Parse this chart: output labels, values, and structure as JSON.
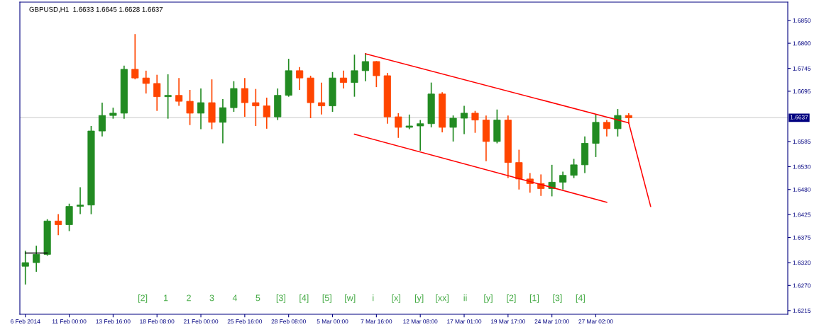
{
  "chart_data": {
    "type": "candlestick",
    "title": "GBPUSD,H1  1.6633 1.6645 1.6628 1.6637",
    "categories": [
      "6 Feb 2014",
      null,
      null,
      null,
      "11 Feb 00:00",
      null,
      null,
      null,
      "13 Feb 16:00",
      null,
      null,
      null,
      "18 Feb 08:00",
      null,
      null,
      null,
      "21 Feb 00:00",
      null,
      null,
      null,
      "25 Feb 16:00",
      null,
      null,
      null,
      "28 Feb 08:00",
      null,
      null,
      null,
      "5 Mar 00:00",
      null,
      null,
      null,
      "7 Mar 16:00",
      null,
      null,
      null,
      "12 Mar 08:00",
      null,
      null,
      null,
      "17 Mar 01:00",
      null,
      null,
      null,
      "19 Mar 17:00",
      null,
      null,
      null,
      "24 Mar 10:00",
      null,
      null,
      null,
      "27 Mar 02:00",
      null,
      null,
      null,
      null,
      null,
      null,
      null,
      null,
      null,
      null,
      null,
      null,
      null,
      null,
      null,
      null,
      null
    ],
    "ohlc": [
      [
        1.6312,
        1.6346,
        1.6272,
        1.632
      ],
      [
        1.632,
        1.6357,
        1.63,
        1.6338
      ],
      [
        1.6338,
        1.6415,
        1.6335,
        1.6411
      ],
      [
        1.6411,
        1.6426,
        1.638,
        1.6403
      ],
      [
        1.6403,
        1.6449,
        1.6389,
        1.6443
      ],
      [
        1.6443,
        1.6485,
        1.6426,
        1.6446
      ],
      [
        1.6446,
        1.6619,
        1.6426,
        1.6608
      ],
      [
        1.6608,
        1.667,
        1.6596,
        1.6642
      ],
      [
        1.6642,
        1.6659,
        1.6635,
        1.6647
      ],
      [
        1.6647,
        1.6751,
        1.6635,
        1.6743
      ],
      [
        1.6743,
        1.682,
        1.6721,
        1.6724
      ],
      [
        1.6724,
        1.674,
        1.669,
        1.6712
      ],
      [
        1.6712,
        1.6731,
        1.6652,
        1.6683
      ],
      [
        1.6683,
        1.6732,
        1.6635,
        1.6686
      ],
      [
        1.6686,
        1.6724,
        1.6663,
        1.6673
      ],
      [
        1.6673,
        1.6698,
        1.6621,
        1.6647
      ],
      [
        1.6647,
        1.6701,
        1.6612,
        1.667
      ],
      [
        1.667,
        1.6721,
        1.6612,
        1.6627
      ],
      [
        1.6627,
        1.6678,
        1.6581,
        1.6659
      ],
      [
        1.6659,
        1.6717,
        1.665,
        1.6701
      ],
      [
        1.6701,
        1.6724,
        1.6639,
        1.667
      ],
      [
        1.667,
        1.67,
        1.6619,
        1.6663
      ],
      [
        1.6663,
        1.6681,
        1.6613,
        1.6639
      ],
      [
        1.6639,
        1.6701,
        1.6632,
        1.6686
      ],
      [
        1.6686,
        1.6766,
        1.6683,
        1.674
      ],
      [
        1.674,
        1.6748,
        1.6698,
        1.6724
      ],
      [
        1.6724,
        1.6729,
        1.6636,
        1.667
      ],
      [
        1.667,
        1.6714,
        1.6644,
        1.6663
      ],
      [
        1.6663,
        1.6737,
        1.665,
        1.6724
      ],
      [
        1.6724,
        1.674,
        1.6701,
        1.6714
      ],
      [
        1.6714,
        1.6775,
        1.6683,
        1.674
      ],
      [
        1.674,
        1.6778,
        1.6717,
        1.676
      ],
      [
        1.676,
        1.6761,
        1.6704,
        1.6729
      ],
      [
        1.6729,
        1.6735,
        1.6624,
        1.6639
      ],
      [
        1.6639,
        1.6647,
        1.6593,
        1.6616
      ],
      [
        1.6616,
        1.6644,
        1.6612,
        1.6619
      ],
      [
        1.6619,
        1.6632,
        1.6565,
        1.6624
      ],
      [
        1.6624,
        1.6714,
        1.6616,
        1.6689
      ],
      [
        1.6689,
        1.6693,
        1.6605,
        1.6616
      ],
      [
        1.6616,
        1.6642,
        1.6585,
        1.6636
      ],
      [
        1.6636,
        1.6663,
        1.6601,
        1.6647
      ],
      [
        1.6647,
        1.6652,
        1.6604,
        1.6632
      ],
      [
        1.6632,
        1.6642,
        1.6542,
        1.6585
      ],
      [
        1.6585,
        1.6655,
        1.6581,
        1.6632
      ],
      [
        1.6632,
        1.6642,
        1.6505,
        1.6539
      ],
      [
        1.6539,
        1.6567,
        1.648,
        1.6503
      ],
      [
        1.6503,
        1.6516,
        1.6473,
        1.6493
      ],
      [
        1.6493,
        1.6513,
        1.6466,
        1.6482
      ],
      [
        1.6482,
        1.6534,
        1.6465,
        1.6496
      ],
      [
        1.6496,
        1.6519,
        1.648,
        1.6511
      ],
      [
        1.6511,
        1.6547,
        1.6505,
        1.6534
      ],
      [
        1.6534,
        1.6596,
        1.6516,
        1.6581
      ],
      [
        1.6581,
        1.6644,
        1.6551,
        1.6627
      ],
      [
        1.6627,
        1.6632,
        1.6596,
        1.6613
      ],
      [
        1.6613,
        1.6656,
        1.6596,
        1.6642
      ],
      [
        1.6642,
        1.6647,
        1.6624,
        1.6637
      ],
      null,
      null,
      null,
      null,
      null,
      null,
      null,
      null,
      null,
      null,
      null,
      null,
      null,
      null
    ],
    "colors": [
      "#228b22",
      "#228b22",
      "#228b22",
      "#ff4500",
      "#228b22",
      "#228b22",
      "#228b22",
      "#228b22",
      "#228b22",
      "#228b22",
      "#ff4500",
      "#ff4500",
      "#ff4500",
      "#228b22",
      "#ff4500",
      "#ff4500",
      "#228b22",
      "#ff4500",
      "#228b22",
      "#228b22",
      "#ff4500",
      "#ff4500",
      "#ff4500",
      "#228b22",
      "#228b22",
      "#ff4500",
      "#ff4500",
      "#ff4500",
      "#228b22",
      "#ff4500",
      "#228b22",
      "#228b22",
      "#ff4500",
      "#ff4500",
      "#ff4500",
      "#228b22",
      "#228b22",
      "#228b22",
      "#ff4500",
      "#228b22",
      "#228b22",
      "#ff4500",
      "#ff4500",
      "#228b22",
      "#ff4500",
      "#ff4500",
      "#ff4500",
      "#ff4500",
      "#228b22",
      "#228b22",
      "#228b22",
      "#228b22",
      "#228b22",
      "#ff4500",
      "#228b22",
      "#ff4500",
      null,
      null,
      null,
      null,
      null,
      null,
      null,
      null,
      null,
      null,
      null,
      null,
      null,
      null
    ],
    "series": [
      {
        "type": "line",
        "color": "#ff0000",
        "values": [
          null,
          null,
          null,
          null,
          null,
          null,
          null,
          null,
          null,
          null,
          null,
          null,
          null,
          null,
          null,
          null,
          null,
          null,
          null,
          null,
          null,
          null,
          null,
          null,
          null,
          null,
          null,
          null,
          null,
          null,
          null,
          1.6777,
          null,
          null,
          null,
          null,
          null,
          null,
          null,
          null,
          null,
          null,
          null,
          null,
          null,
          null,
          null,
          null,
          null,
          null,
          null,
          null,
          null,
          null,
          null,
          1.6626,
          null,
          null,
          null,
          null,
          null,
          null,
          null,
          null,
          null,
          null,
          null,
          null,
          null,
          null
        ]
      },
      {
        "type": "line",
        "color": "#ff0000",
        "values": [
          null,
          null,
          null,
          null,
          null,
          null,
          null,
          null,
          null,
          null,
          null,
          null,
          null,
          null,
          null,
          null,
          null,
          null,
          null,
          null,
          null,
          null,
          null,
          null,
          null,
          null,
          null,
          null,
          null,
          null,
          1.6601,
          null,
          null,
          null,
          null,
          null,
          null,
          null,
          null,
          null,
          null,
          null,
          null,
          null,
          null,
          null,
          null,
          null,
          null,
          null,
          null,
          null,
          null,
          1.6452,
          null,
          null,
          null,
          null,
          null,
          null,
          null,
          null,
          null,
          null,
          null,
          null,
          null,
          null,
          null,
          null
        ]
      },
      {
        "type": "line",
        "color": "#ff0000",
        "values": [
          null,
          null,
          null,
          null,
          null,
          null,
          null,
          null,
          null,
          null,
          null,
          null,
          null,
          null,
          null,
          null,
          null,
          null,
          null,
          null,
          null,
          null,
          null,
          null,
          null,
          null,
          null,
          null,
          null,
          null,
          null,
          null,
          null,
          null,
          null,
          null,
          null,
          null,
          null,
          null,
          null,
          null,
          null,
          null,
          null,
          null,
          null,
          null,
          null,
          null,
          null,
          null,
          null,
          null,
          null,
          1.6626,
          null,
          1.6443,
          null,
          null,
          null,
          null,
          null,
          null,
          null,
          null,
          null,
          null,
          null,
          null
        ]
      },
      {
        "type": "line",
        "color": "#000000",
        "values": [
          1.6341,
          null,
          1.6341,
          null,
          null,
          null,
          null,
          null,
          null,
          null,
          null,
          null,
          null,
          null,
          null,
          null,
          null,
          null,
          null,
          null,
          null,
          null,
          null,
          null,
          null,
          null,
          null,
          null,
          null,
          null,
          null,
          null,
          null,
          null,
          null,
          null,
          null,
          null,
          null,
          null,
          null,
          null,
          null,
          null,
          null,
          null,
          null,
          null,
          null,
          null,
          null,
          null,
          null,
          null,
          null,
          null,
          null,
          null,
          null,
          null,
          null,
          null,
          null,
          null,
          null,
          null,
          null,
          null,
          null,
          null
        ]
      }
    ],
    "ylim": [
      1.6207,
      1.689
    ],
    "yticks": [
      {
        "value": 1.6215,
        "label": "1.6215"
      },
      {
        "value": 1.627,
        "label": "1.6270"
      },
      {
        "value": 1.632,
        "label": "1.6320"
      },
      {
        "value": 1.6375,
        "label": "1.6375"
      },
      {
        "value": 1.6425,
        "label": "1.6425"
      },
      {
        "value": 1.648,
        "label": "1.6480"
      },
      {
        "value": 1.653,
        "label": "1.6530"
      },
      {
        "value": 1.6585,
        "label": "1.6585"
      },
      {
        "value": 1.6695,
        "label": "1.6695"
      },
      {
        "value": 1.6745,
        "label": "1.6745"
      },
      {
        "value": 1.68,
        "label": "1.6800"
      },
      {
        "value": 1.685,
        "label": "1.6850"
      }
    ],
    "ref_lines": [
      {
        "axis": "y",
        "value": 1.6637,
        "label": "1.6637",
        "color": "#d3d3d3"
      }
    ],
    "annotations": [
      "[2]",
      "1",
      "2",
      "3",
      "4",
      "5",
      "[3]",
      "[4]",
      "[5]",
      "[w]",
      "i",
      "[x]",
      "[y]",
      "[xx]",
      "ii",
      "[y]",
      "[2]",
      "[1]",
      "[3]",
      "[4]"
    ],
    "grid": false
  }
}
